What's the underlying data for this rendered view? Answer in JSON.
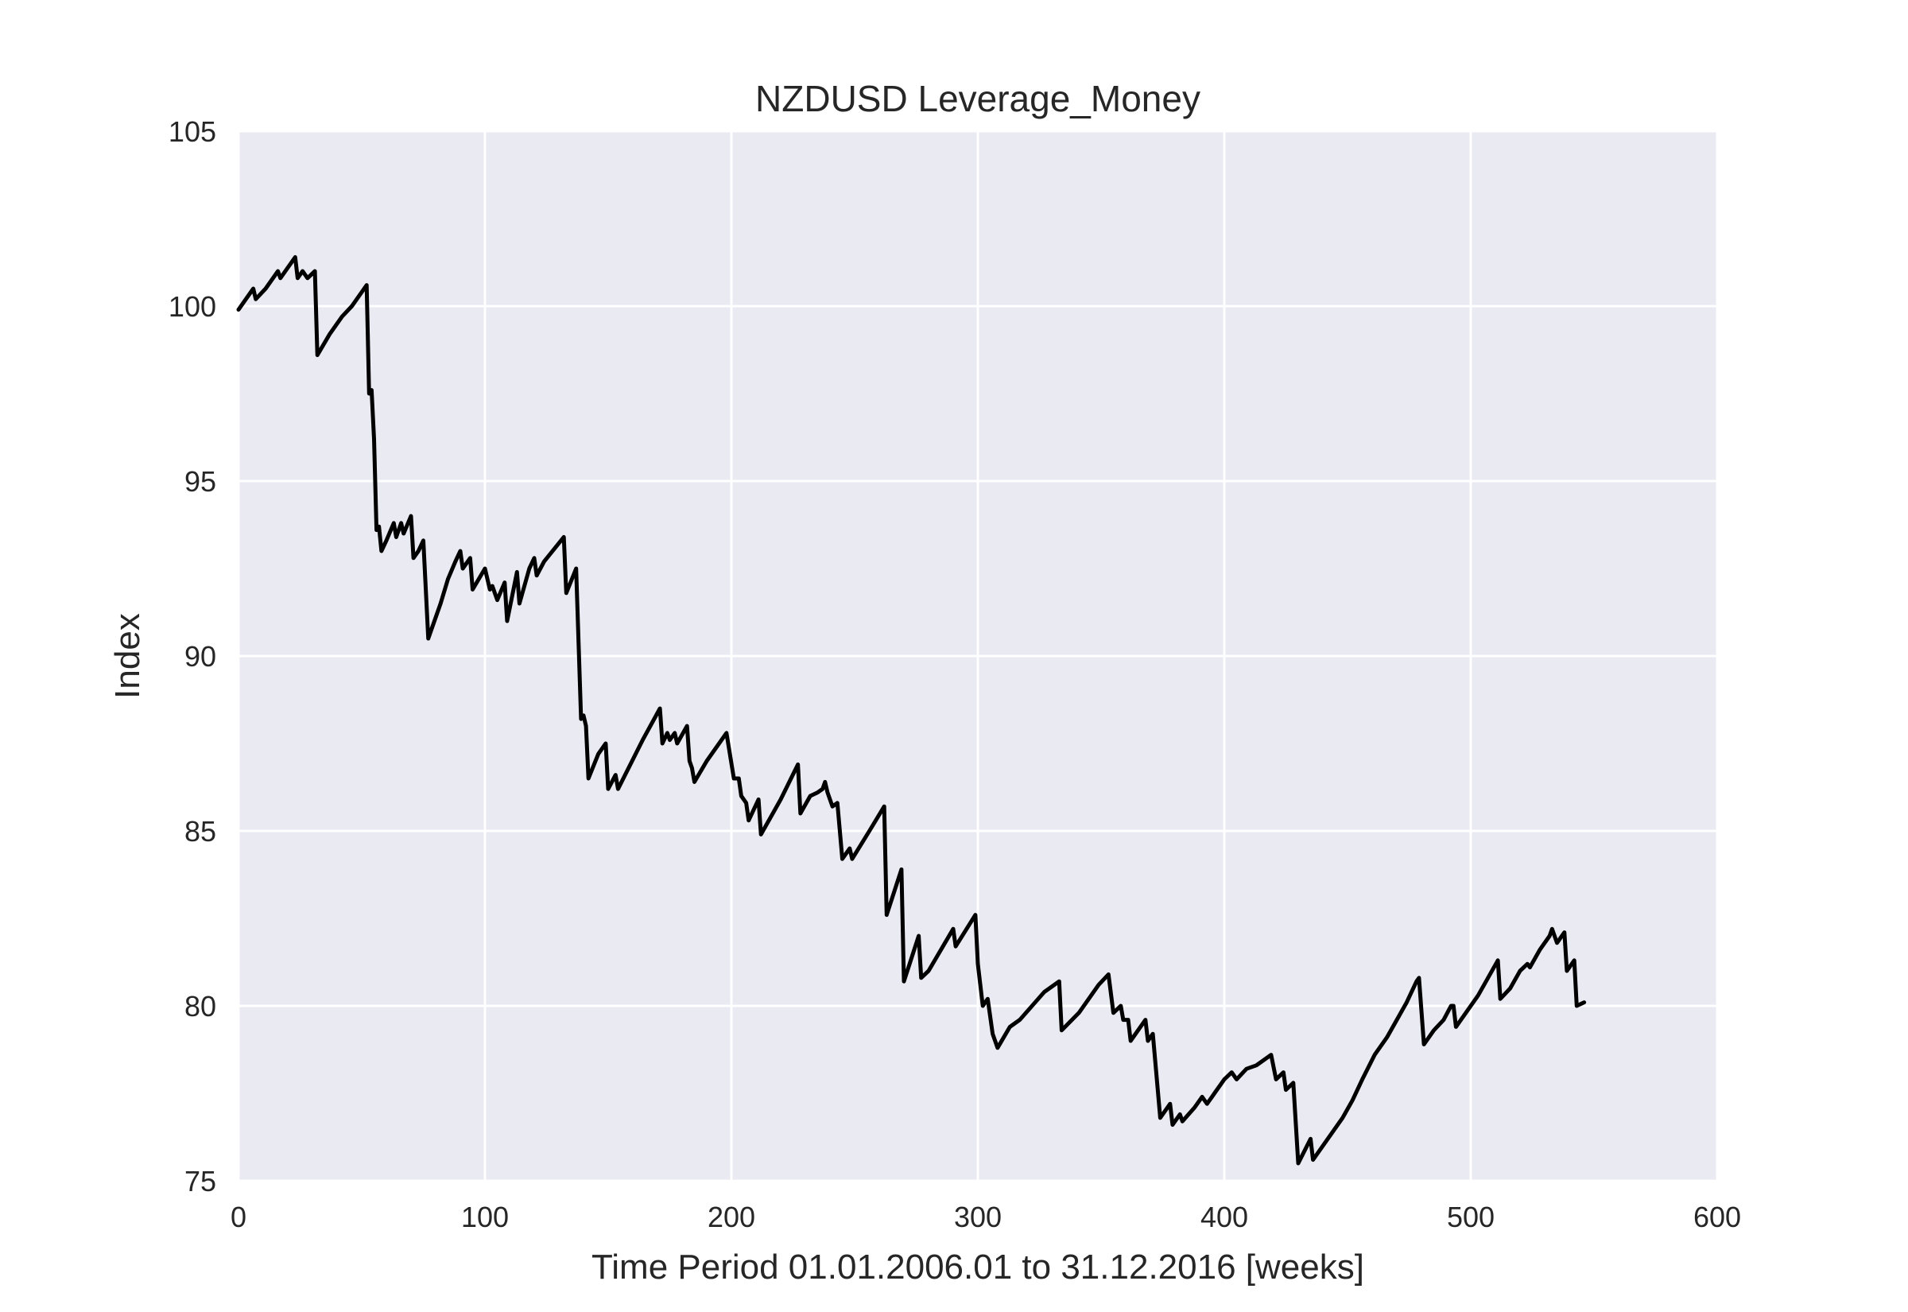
{
  "chart_data": {
    "type": "line",
    "title": "NZDUSD Leverage_Money",
    "xlabel": "Time Period 01.01.2006.01 to 31.12.2016 [weeks]",
    "ylabel": "Index",
    "xlim": [
      0,
      600
    ],
    "ylim": [
      75,
      105
    ],
    "xticks": [
      0,
      100,
      200,
      300,
      400,
      500,
      600
    ],
    "yticks": [
      75,
      80,
      85,
      90,
      95,
      100,
      105
    ],
    "x_tick_labels": [
      "0",
      "100",
      "200",
      "300",
      "400",
      "500",
      "600"
    ],
    "y_tick_labels": [
      "75",
      "80",
      "85",
      "90",
      "95",
      "100",
      "105"
    ],
    "grid": true,
    "colors": {
      "background": "#eaeaf2",
      "grid": "#ffffff",
      "line": "#000000"
    },
    "series": [
      {
        "points": [
          [
            0,
            99.9
          ],
          [
            6,
            100.5
          ],
          [
            7,
            100.2
          ],
          [
            11,
            100.5
          ],
          [
            16,
            101.0
          ],
          [
            17,
            100.8
          ],
          [
            23,
            101.4
          ],
          [
            24,
            100.8
          ],
          [
            26,
            101.0
          ],
          [
            28,
            100.8
          ],
          [
            31,
            101.0
          ],
          [
            32,
            98.6
          ],
          [
            37,
            99.2
          ],
          [
            42,
            99.7
          ],
          [
            46,
            100.0
          ],
          [
            52,
            100.6
          ],
          [
            53,
            97.5
          ],
          [
            54,
            97.6
          ],
          [
            55,
            96.2
          ],
          [
            56,
            93.6
          ],
          [
            57,
            93.7
          ],
          [
            58,
            93.0
          ],
          [
            60,
            93.3
          ],
          [
            63,
            93.8
          ],
          [
            64,
            93.4
          ],
          [
            66,
            93.8
          ],
          [
            67,
            93.5
          ],
          [
            70,
            94.0
          ],
          [
            71,
            92.8
          ],
          [
            73,
            93.0
          ],
          [
            75,
            93.3
          ],
          [
            77,
            90.5
          ],
          [
            82,
            91.5
          ],
          [
            85,
            92.2
          ],
          [
            88,
            92.7
          ],
          [
            90,
            93.0
          ],
          [
            91,
            92.5
          ],
          [
            94,
            92.8
          ],
          [
            95,
            91.9
          ],
          [
            100,
            92.5
          ],
          [
            102,
            91.9
          ],
          [
            103,
            92.0
          ],
          [
            105,
            91.6
          ],
          [
            108,
            92.1
          ],
          [
            109,
            91.0
          ],
          [
            113,
            92.4
          ],
          [
            114,
            91.5
          ],
          [
            118,
            92.5
          ],
          [
            120,
            92.8
          ],
          [
            121,
            92.3
          ],
          [
            124,
            92.7
          ],
          [
            132,
            93.4
          ],
          [
            133,
            91.8
          ],
          [
            137,
            92.5
          ],
          [
            139,
            88.2
          ],
          [
            140,
            88.3
          ],
          [
            141,
            88.0
          ],
          [
            142,
            86.5
          ],
          [
            146,
            87.2
          ],
          [
            149,
            87.5
          ],
          [
            150,
            86.2
          ],
          [
            153,
            86.6
          ],
          [
            154,
            86.2
          ],
          [
            164,
            87.6
          ],
          [
            171,
            88.5
          ],
          [
            172,
            87.5
          ],
          [
            174,
            87.8
          ],
          [
            175,
            87.6
          ],
          [
            177,
            87.8
          ],
          [
            178,
            87.5
          ],
          [
            182,
            88.0
          ],
          [
            183,
            87.0
          ],
          [
            184,
            86.8
          ],
          [
            185,
            86.4
          ],
          [
            190,
            87.0
          ],
          [
            198,
            87.8
          ],
          [
            201,
            86.5
          ],
          [
            203,
            86.5
          ],
          [
            204,
            86.0
          ],
          [
            206,
            85.8
          ],
          [
            207,
            85.3
          ],
          [
            211,
            85.9
          ],
          [
            212,
            84.9
          ],
          [
            220,
            85.9
          ],
          [
            227,
            86.9
          ],
          [
            228,
            85.5
          ],
          [
            232,
            86.0
          ],
          [
            235,
            86.1
          ],
          [
            237,
            86.2
          ],
          [
            238,
            86.4
          ],
          [
            239,
            86.1
          ],
          [
            241,
            85.7
          ],
          [
            243,
            85.8
          ],
          [
            245,
            84.2
          ],
          [
            248,
            84.5
          ],
          [
            249,
            84.2
          ],
          [
            256,
            85.0
          ],
          [
            262,
            85.7
          ],
          [
            263,
            82.6
          ],
          [
            269,
            83.9
          ],
          [
            270,
            80.7
          ],
          [
            276,
            82.0
          ],
          [
            277,
            80.8
          ],
          [
            280,
            81.0
          ],
          [
            290,
            82.2
          ],
          [
            291,
            81.7
          ],
          [
            299,
            82.6
          ],
          [
            300,
            81.2
          ],
          [
            302,
            80.0
          ],
          [
            304,
            80.2
          ],
          [
            306,
            79.2
          ],
          [
            308,
            78.8
          ],
          [
            313,
            79.4
          ],
          [
            317,
            79.6
          ],
          [
            322,
            80.0
          ],
          [
            327,
            80.4
          ],
          [
            333,
            80.7
          ],
          [
            334,
            79.3
          ],
          [
            341,
            79.8
          ],
          [
            345,
            80.2
          ],
          [
            349,
            80.6
          ],
          [
            353,
            80.9
          ],
          [
            355,
            79.8
          ],
          [
            358,
            80.0
          ],
          [
            359,
            79.6
          ],
          [
            361,
            79.6
          ],
          [
            362,
            79.0
          ],
          [
            368,
            79.6
          ],
          [
            369,
            79.0
          ],
          [
            371,
            79.2
          ],
          [
            374,
            76.8
          ],
          [
            378,
            77.2
          ],
          [
            379,
            76.6
          ],
          [
            382,
            76.9
          ],
          [
            383,
            76.7
          ],
          [
            388,
            77.1
          ],
          [
            391,
            77.4
          ],
          [
            393,
            77.2
          ],
          [
            396,
            77.5
          ],
          [
            400,
            77.9
          ],
          [
            403,
            78.1
          ],
          [
            405,
            77.9
          ],
          [
            409,
            78.2
          ],
          [
            413,
            78.3
          ],
          [
            419,
            78.6
          ],
          [
            421,
            77.9
          ],
          [
            424,
            78.1
          ],
          [
            425,
            77.6
          ],
          [
            428,
            77.8
          ],
          [
            430,
            75.5
          ],
          [
            435,
            76.2
          ],
          [
            436,
            75.6
          ],
          [
            442,
            76.2
          ],
          [
            448,
            76.8
          ],
          [
            452,
            77.3
          ],
          [
            456,
            77.9
          ],
          [
            461,
            78.6
          ],
          [
            466,
            79.1
          ],
          [
            470,
            79.6
          ],
          [
            474,
            80.1
          ],
          [
            478,
            80.7
          ],
          [
            479,
            80.8
          ],
          [
            481,
            78.9
          ],
          [
            485,
            79.3
          ],
          [
            489,
            79.6
          ],
          [
            492,
            80.0
          ],
          [
            493,
            80.0
          ],
          [
            494,
            79.4
          ],
          [
            499,
            79.9
          ],
          [
            503,
            80.3
          ],
          [
            507,
            80.8
          ],
          [
            511,
            81.3
          ],
          [
            512,
            80.2
          ],
          [
            516,
            80.5
          ],
          [
            520,
            81.0
          ],
          [
            523,
            81.2
          ],
          [
            524,
            81.1
          ],
          [
            528,
            81.6
          ],
          [
            532,
            82.0
          ],
          [
            533,
            82.2
          ],
          [
            535,
            81.8
          ],
          [
            538,
            82.1
          ],
          [
            539,
            81.0
          ],
          [
            542,
            81.3
          ],
          [
            543,
            80.0
          ],
          [
            546,
            80.1
          ]
        ]
      }
    ]
  }
}
